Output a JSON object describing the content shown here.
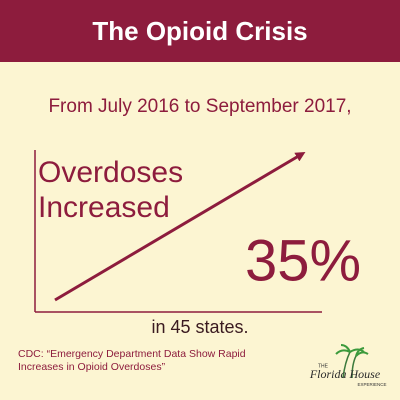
{
  "header": {
    "title": "The Opioid Crisis"
  },
  "intro": "From July 2016 to September 2017,",
  "headline": [
    "Overdoses",
    "Increased"
  ],
  "stat": "35%",
  "scope": "in 45 states.",
  "source": [
    "CDC: “Emergency Department Data Show Rapid",
    "Increases in Opioid Overdoses”"
  ],
  "logo": {
    "top": "THE",
    "name": "Florida House",
    "bottom": "EXPERIENCE"
  }
}
